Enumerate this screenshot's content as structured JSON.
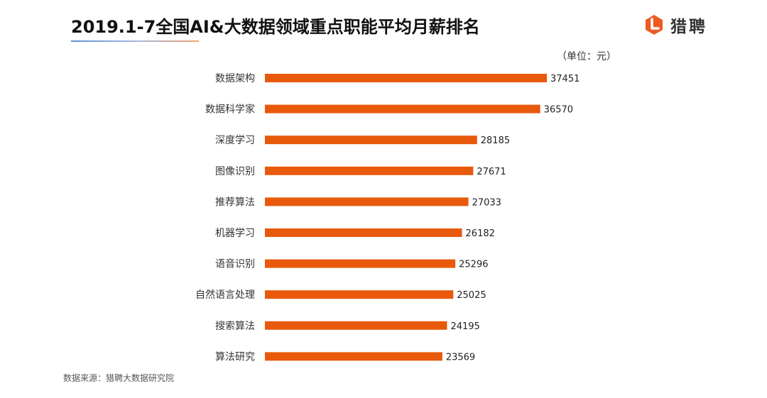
{
  "title": "2019.1-7全国AI&大数据领域重点职能平均月薪排名",
  "logo": {
    "name": "猎聘",
    "icon": "liepin-logo-icon",
    "color": "#ee5a24"
  },
  "unit_label": "（单位：元）",
  "source": "数据来源：猎聘大数据研究院",
  "chart_data": {
    "type": "bar",
    "orientation": "horizontal",
    "title": "2019.1-7全国AI&大数据领域重点职能平均月薪排名",
    "categories": [
      "数据架构",
      "数据科学家",
      "深度学习",
      "图像识别",
      "推荐算法",
      "机器学习",
      "语音识别",
      "自然语言处理",
      "搜索算法",
      "算法研究"
    ],
    "values": [
      37451,
      36570,
      28185,
      27671,
      27033,
      26182,
      25296,
      25025,
      24195,
      23569
    ],
    "xlim": [
      0,
      40000
    ],
    "grid": false,
    "legend": "none",
    "bar_color": "#e8590c"
  }
}
